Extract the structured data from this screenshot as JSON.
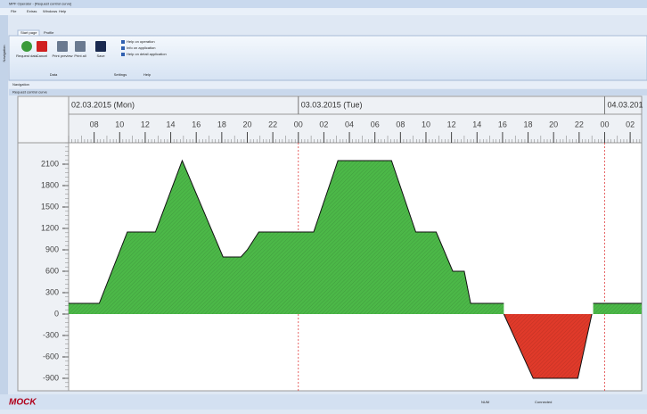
{
  "window": {
    "title": "MPF Operator - [Request control curve]",
    "menu": [
      "File",
      "Extras",
      "Windows",
      "Help"
    ]
  },
  "ribbon": {
    "tabs": [
      "Start page",
      "Profile"
    ],
    "buttons": [
      "Request data",
      "Cancel",
      "Print preview",
      "Print all",
      "Save"
    ],
    "help_items": [
      "Help on operation",
      "Info on application",
      "Help on detail application"
    ],
    "groups": [
      "Data",
      "Settings",
      "Help"
    ]
  },
  "sidebar": "Navigation",
  "panel": {
    "navigation": "Navigation",
    "title": "Request control curve"
  },
  "chart_data": {
    "type": "area",
    "dates": [
      {
        "value": 0,
        "label": "02.03.2015 (Mon)"
      },
      {
        "value": 24,
        "label": "03.03.2015 (Tue)"
      },
      {
        "value": 48,
        "label": "04.03.201"
      }
    ],
    "xlim": [
      6,
      50.9
    ],
    "xticks": [
      {
        "value": 8,
        "label": "08"
      },
      10,
      12,
      14,
      16,
      18,
      20,
      22,
      {
        "value": 24,
        "label": "00"
      },
      {
        "value": 26,
        "label": "02"
      },
      {
        "value": 28,
        "label": "04"
      },
      {
        "value": 30,
        "label": "06"
      },
      {
        "value": 32,
        "label": "08"
      },
      {
        "value": 34,
        "label": "10"
      },
      {
        "value": 36,
        "label": "12"
      },
      {
        "value": 38,
        "label": "14"
      },
      {
        "value": 40,
        "label": "16"
      },
      {
        "value": 42,
        "label": "18"
      },
      {
        "value": 44,
        "label": "20"
      },
      {
        "value": 46,
        "label": "22"
      },
      {
        "value": 48,
        "label": "00"
      },
      {
        "value": 50,
        "label": "02"
      }
    ],
    "ylim": [
      -1075,
      2400
    ],
    "yticks": [
      -900,
      -600,
      -300,
      0,
      300,
      600,
      900,
      1200,
      1500,
      1800,
      2100
    ],
    "series": [
      {
        "color": "#4cb848",
        "x": [
          6,
          8.4,
          10.6,
          12.8,
          14.9,
          18.1,
          19.5,
          20,
          20.9,
          25.2,
          27.1,
          31.3,
          33.2,
          34.8,
          36.1,
          37,
          37.5,
          40.1,
          null,
          47.1,
          50.9
        ],
        "values": [
          150,
          150,
          1150,
          1150,
          2150,
          800,
          800,
          900,
          1150,
          1150,
          2150,
          2150,
          1150,
          1150,
          600,
          600,
          150,
          150,
          null,
          150,
          150
        ]
      },
      {
        "color": "#e03a2a",
        "x": [
          40.1,
          42.4,
          45.9,
          47
        ],
        "values": [
          0,
          -900,
          -900,
          0
        ]
      }
    ]
  },
  "status": [
    "NUM",
    "MOCK",
    "Connected"
  ]
}
